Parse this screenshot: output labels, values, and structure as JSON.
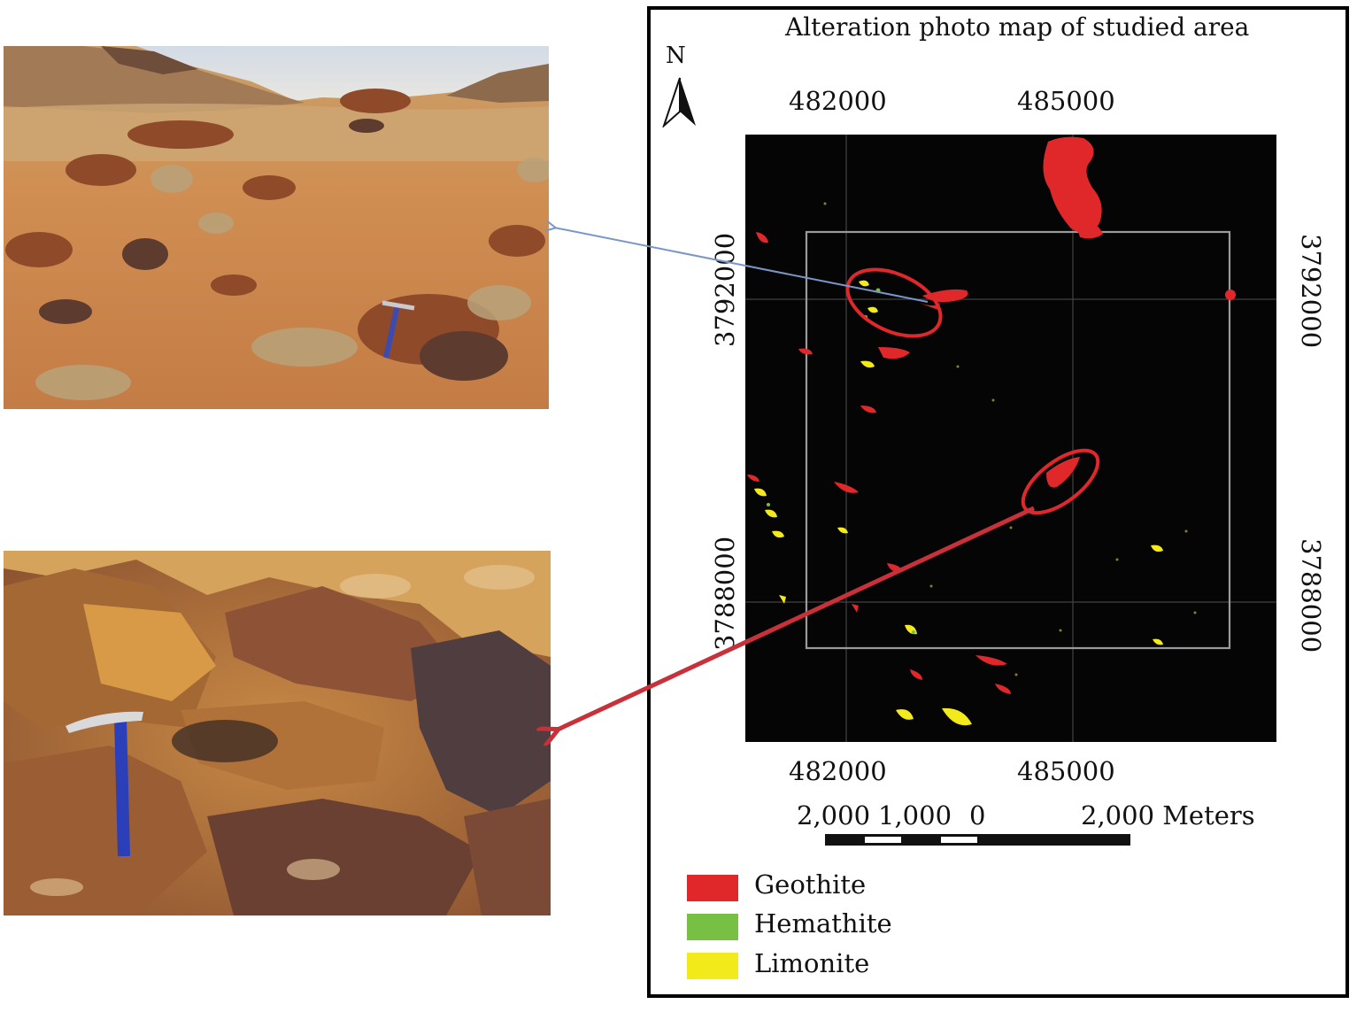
{
  "map": {
    "title": "Alteration photo map of studied area",
    "north_label": "N",
    "x_ticks_top": [
      "482000",
      "485000"
    ],
    "x_ticks_bottom": [
      "482000",
      "485000"
    ],
    "y_ticks_left": [
      "3792000",
      "3788000"
    ],
    "y_ticks_right": [
      "3792000",
      "3788000"
    ],
    "scale_bar": {
      "labels": [
        "2,000",
        "1,000",
        "0",
        "2,000 Meters"
      ]
    },
    "legend": [
      {
        "label": "Geothite",
        "color": "#e0282b"
      },
      {
        "label": "Hemathite",
        "color": "#77c043"
      },
      {
        "label": "Limonite",
        "color": "#f2ea1a"
      }
    ],
    "colors": {
      "raster_background": "#050505",
      "highlight_ellipse": "#e0282b",
      "arrow_top": "#7a95c8",
      "arrow_bottom": "#c8303a",
      "grid_line": "#9a9a9a"
    }
  },
  "photos": [
    {
      "name": "field-photo-upper",
      "description_icon": "outcrop-photo",
      "colors": {
        "sky": "#d7dde6",
        "ground": "#c88a4c"
      }
    },
    {
      "name": "field-photo-lower",
      "description_icon": "outcrop-closeup-photo",
      "colors": {
        "rock": "#a86a3a"
      }
    }
  ]
}
